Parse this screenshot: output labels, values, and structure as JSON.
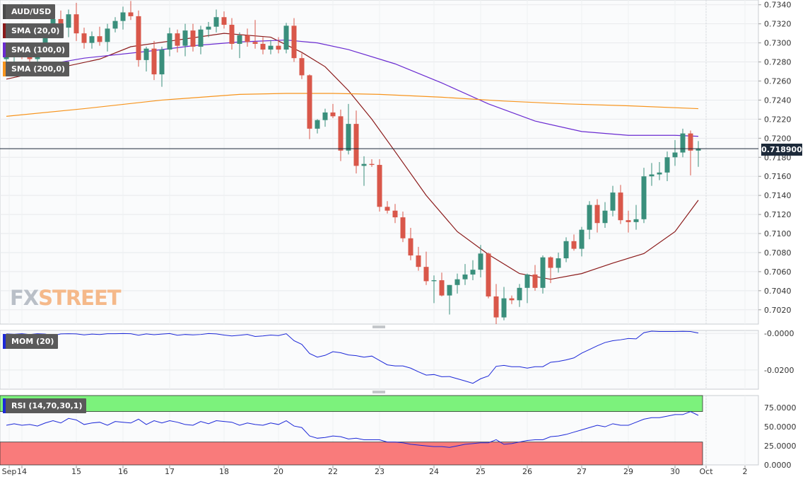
{
  "symbol": "AUD/USD",
  "indicators": {
    "sma20": {
      "label": "SMA (20,0)",
      "color": "#8b1a1a"
    },
    "sma100": {
      "label": "SMA (100,0)",
      "color": "#6a2bd1"
    },
    "sma200": {
      "label": "SMA (200,0)",
      "color": "#f7941d"
    },
    "mom": {
      "label": "MOM (20)",
      "color": "#1c28d8"
    },
    "rsi": {
      "label": "RSI (14,70,30,1)",
      "color": "#1c28d8"
    }
  },
  "logo": {
    "part1": "FX",
    "part2": "STREET"
  },
  "current_price": {
    "value": 0.7189,
    "label": "0.718900",
    "color": "#1d2a3a"
  },
  "colors": {
    "bull": "#3a8f7c",
    "bear": "#d9574a",
    "rsi_overbought": "#7cf27c",
    "rsi_oversold": "#f97b7b"
  },
  "chart_data": [
    {
      "type": "candlestick",
      "title": "AUD/USD",
      "xlabel": "",
      "ylabel": "",
      "x_tick_labels": [
        "Sep",
        "14",
        "15",
        "16",
        "17",
        "18",
        "20",
        "22",
        "23",
        "24",
        "25",
        "26",
        "27",
        "29",
        "30",
        "Oct",
        "2"
      ],
      "y_ticks": [
        0.702,
        0.704,
        0.706,
        0.708,
        0.71,
        0.712,
        0.714,
        0.716,
        0.718,
        0.72,
        0.722,
        0.724,
        0.726,
        0.728,
        0.73,
        0.732,
        0.734
      ],
      "y_tick_labels": [
        "0.7020",
        "0.7040",
        "0.7060",
        "0.7080",
        "0.7100",
        "0.7120",
        "0.7140",
        "0.7160",
        "0.7180",
        "0.7200",
        "0.7220",
        "0.7240",
        "0.7260",
        "0.7280",
        "0.7300",
        "0.7320",
        "0.7340"
      ],
      "ylim": [
        0.7005,
        0.7345
      ],
      "grid": true,
      "candles": [
        [
          0.7283,
          0.7291,
          0.7276,
          0.7286
        ],
        [
          0.7286,
          0.7294,
          0.728,
          0.729
        ],
        [
          0.729,
          0.7296,
          0.7283,
          0.7288
        ],
        [
          0.7288,
          0.7295,
          0.728,
          0.7283
        ],
        [
          0.7283,
          0.73,
          0.7273,
          0.7296
        ],
        [
          0.7296,
          0.7315,
          0.7291,
          0.731
        ],
        [
          0.731,
          0.733,
          0.7306,
          0.7325
        ],
        [
          0.7325,
          0.7334,
          0.7312,
          0.7316
        ],
        [
          0.7316,
          0.7335,
          0.7306,
          0.733
        ],
        [
          0.733,
          0.7342,
          0.7302,
          0.731
        ],
        [
          0.731,
          0.7316,
          0.7294,
          0.73
        ],
        [
          0.73,
          0.7312,
          0.7294,
          0.7307
        ],
        [
          0.7307,
          0.7317,
          0.7297,
          0.7301
        ],
        [
          0.7301,
          0.732,
          0.7291,
          0.7315
        ],
        [
          0.7315,
          0.7327,
          0.7311,
          0.7323
        ],
        [
          0.7323,
          0.7338,
          0.7314,
          0.7332
        ],
        [
          0.7332,
          0.7344,
          0.7324,
          0.7328
        ],
        [
          0.7328,
          0.7334,
          0.7275,
          0.7282
        ],
        [
          0.7282,
          0.7296,
          0.727,
          0.7294
        ],
        [
          0.7294,
          0.7302,
          0.7261,
          0.7267
        ],
        [
          0.7267,
          0.7296,
          0.7254,
          0.7293
        ],
        [
          0.7293,
          0.7316,
          0.7286,
          0.731
        ],
        [
          0.731,
          0.7314,
          0.729,
          0.7297
        ],
        [
          0.7297,
          0.732,
          0.7286,
          0.7313
        ],
        [
          0.7313,
          0.732,
          0.7291,
          0.7296
        ],
        [
          0.7296,
          0.7318,
          0.7288,
          0.7314
        ],
        [
          0.7314,
          0.7322,
          0.7306,
          0.7317
        ],
        [
          0.7317,
          0.7335,
          0.7311,
          0.7327
        ],
        [
          0.7327,
          0.7333,
          0.7315,
          0.7319
        ],
        [
          0.7319,
          0.7326,
          0.7293,
          0.7299
        ],
        [
          0.7299,
          0.7311,
          0.7284,
          0.7308
        ],
        [
          0.7308,
          0.7315,
          0.7296,
          0.7301
        ],
        [
          0.7301,
          0.7324,
          0.7294,
          0.7299
        ],
        [
          0.7299,
          0.7306,
          0.7288,
          0.7293
        ],
        [
          0.7293,
          0.7303,
          0.7288,
          0.7297
        ],
        [
          0.7297,
          0.7306,
          0.7289,
          0.7293
        ],
        [
          0.7293,
          0.7321,
          0.7289,
          0.7318
        ],
        [
          0.7318,
          0.7326,
          0.728,
          0.7284
        ],
        [
          0.7284,
          0.7289,
          0.7262,
          0.7266
        ],
        [
          0.7266,
          0.7267,
          0.7199,
          0.721
        ],
        [
          0.721,
          0.722,
          0.7205,
          0.7219
        ],
        [
          0.7219,
          0.7231,
          0.7212,
          0.7227
        ],
        [
          0.7227,
          0.7236,
          0.7221,
          0.7223
        ],
        [
          0.7223,
          0.723,
          0.7176,
          0.7187
        ],
        [
          0.7187,
          0.7236,
          0.7183,
          0.7215
        ],
        [
          0.7215,
          0.7229,
          0.7163,
          0.7171
        ],
        [
          0.7171,
          0.7181,
          0.715,
          0.7173
        ],
        [
          0.7173,
          0.7178,
          0.717,
          0.7172
        ],
        [
          0.7172,
          0.7178,
          0.7123,
          0.7128
        ],
        [
          0.7128,
          0.7134,
          0.7121,
          0.7124
        ],
        [
          0.7124,
          0.7131,
          0.7111,
          0.7117
        ],
        [
          0.7117,
          0.7123,
          0.7091,
          0.7095
        ],
        [
          0.7095,
          0.7106,
          0.7072,
          0.7077
        ],
        [
          0.7077,
          0.7086,
          0.7061,
          0.7065
        ],
        [
          0.7065,
          0.7081,
          0.7046,
          0.705
        ],
        [
          0.705,
          0.7056,
          0.7027,
          0.7051
        ],
        [
          0.7051,
          0.7059,
          0.7034,
          0.7035
        ],
        [
          0.7035,
          0.7046,
          0.7015,
          0.7046
        ],
        [
          0.7046,
          0.7058,
          0.7037,
          0.7052
        ],
        [
          0.7052,
          0.7068,
          0.7046,
          0.7057
        ],
        [
          0.7057,
          0.7072,
          0.7051,
          0.7062
        ],
        [
          0.7062,
          0.7088,
          0.7054,
          0.7079
        ],
        [
          0.7079,
          0.708,
          0.7032,
          0.7034
        ],
        [
          0.7034,
          0.7047,
          0.7005,
          0.7012
        ],
        [
          0.7012,
          0.7044,
          0.7009,
          0.7032
        ],
        [
          0.7032,
          0.7035,
          0.7026,
          0.703
        ],
        [
          0.703,
          0.7047,
          0.7023,
          0.7043
        ],
        [
          0.7043,
          0.7058,
          0.7027,
          0.7057
        ],
        [
          0.7057,
          0.7067,
          0.704,
          0.7043
        ],
        [
          0.7043,
          0.7077,
          0.7037,
          0.7075
        ],
        [
          0.7075,
          0.7076,
          0.7048,
          0.7064
        ],
        [
          0.7064,
          0.708,
          0.7059,
          0.7074
        ],
        [
          0.7074,
          0.7096,
          0.707,
          0.7092
        ],
        [
          0.7092,
          0.7099,
          0.7082,
          0.7084
        ],
        [
          0.7084,
          0.7107,
          0.7076,
          0.7104
        ],
        [
          0.7104,
          0.7134,
          0.7094,
          0.713
        ],
        [
          0.713,
          0.7136,
          0.7101,
          0.7111
        ],
        [
          0.7111,
          0.7133,
          0.7106,
          0.7124
        ],
        [
          0.7124,
          0.715,
          0.7118,
          0.7143
        ],
        [
          0.7143,
          0.7151,
          0.711,
          0.7114
        ],
        [
          0.7114,
          0.7124,
          0.7101,
          0.7112
        ],
        [
          0.7112,
          0.713,
          0.7104,
          0.7115
        ],
        [
          0.7115,
          0.7169,
          0.7111,
          0.716
        ],
        [
          0.716,
          0.7174,
          0.715,
          0.7162
        ],
        [
          0.7162,
          0.7175,
          0.7156,
          0.7164
        ],
        [
          0.7164,
          0.7186,
          0.7155,
          0.718
        ],
        [
          0.718,
          0.7198,
          0.7171,
          0.7185
        ],
        [
          0.7185,
          0.721,
          0.718,
          0.7205
        ],
        [
          0.7205,
          0.7208,
          0.7161,
          0.7187
        ],
        [
          0.7187,
          0.7197,
          0.717,
          0.7189
        ]
      ],
      "series": [
        {
          "name": "SMA (20,0)",
          "color": "#8b1a1a",
          "x": [
            0,
            12,
            16,
            22,
            28,
            34,
            38,
            41,
            44,
            47,
            50,
            54,
            58,
            62,
            66,
            70,
            74,
            78,
            82,
            86,
            89
          ],
          "values": [
            0.7262,
            0.7283,
            0.7296,
            0.7303,
            0.731,
            0.7306,
            0.729,
            0.7275,
            0.725,
            0.722,
            0.7186,
            0.714,
            0.7102,
            0.7078,
            0.7058,
            0.7052,
            0.7058,
            0.7069,
            0.7079,
            0.7102,
            0.7135
          ]
        },
        {
          "name": "SMA (100,0)",
          "color": "#6a2bd1",
          "x": [
            0,
            10,
            18,
            24,
            30,
            36,
            40,
            44,
            50,
            56,
            62,
            68,
            74,
            80,
            86,
            89
          ],
          "values": [
            0.727,
            0.7284,
            0.7291,
            0.7297,
            0.7301,
            0.7303,
            0.73,
            0.7293,
            0.7278,
            0.7258,
            0.7236,
            0.7218,
            0.7207,
            0.7203,
            0.7203,
            0.7202
          ]
        },
        {
          "name": "SMA (200,0)",
          "color": "#f7941d",
          "x": [
            0,
            10,
            20,
            30,
            36,
            42,
            48,
            56,
            64,
            72,
            80,
            89
          ],
          "values": [
            0.7223,
            0.7231,
            0.724,
            0.7246,
            0.7247,
            0.7247,
            0.7246,
            0.7243,
            0.7239,
            0.7236,
            0.7234,
            0.7231
          ]
        }
      ]
    },
    {
      "type": "line",
      "title": "MOM (20)",
      "ylim": [
        -0.0305,
        0.0016
      ],
      "y_ticks": [
        0.0,
        -0.02
      ],
      "y_tick_labels": [
        "-0.0000",
        "-0.0200"
      ],
      "series": [
        {
          "name": "MOM (20)",
          "values": [
            -0.0003,
            -0.0005,
            -0.0002,
            -0.0006,
            -0.0002,
            -0.0004,
            -0.0012,
            -0.0003,
            -0.0002,
            -0.0003,
            -0.0008,
            -0.0004,
            -0.0006,
            -0.0002,
            -0.0002,
            -0.0001,
            -0.0002,
            -0.001,
            -0.0003,
            -0.0007,
            -0.0004,
            -0.0001,
            -0.001,
            -0.0006,
            -0.0008,
            -0.0006,
            -0.0001,
            -0.0003,
            -0.0009,
            -0.0014,
            -0.001,
            -0.0006,
            -0.0017,
            -0.0014,
            -0.0009,
            -0.0012,
            -0.0002,
            -0.004,
            -0.006,
            -0.011,
            -0.013,
            -0.012,
            -0.01,
            -0.0106,
            -0.0118,
            -0.0122,
            -0.013,
            -0.0124,
            -0.0148,
            -0.0172,
            -0.0178,
            -0.0178,
            -0.019,
            -0.021,
            -0.0228,
            -0.0225,
            -0.0237,
            -0.0236,
            -0.0248,
            -0.026,
            -0.0273,
            -0.0248,
            -0.0233,
            -0.018,
            -0.0175,
            -0.0182,
            -0.0182,
            -0.019,
            -0.0182,
            -0.0182,
            -0.0158,
            -0.0153,
            -0.0145,
            -0.0134,
            -0.0108,
            -0.0088,
            -0.0068,
            -0.005,
            -0.004,
            -0.0035,
            -0.0028,
            -0.003,
            0.0004,
            0.0012,
            0.001,
            0.001,
            0.001,
            0.0011,
            0.001,
            0.0002
          ]
        }
      ]
    },
    {
      "type": "line",
      "title": "RSI (14,70,30,1)",
      "ylim": [
        0,
        91
      ],
      "y_ticks": [
        0,
        25,
        50,
        75
      ],
      "y_tick_labels": [
        "0.0000",
        "25.0000",
        "50.0000",
        "75.0000"
      ],
      "overbought": 70,
      "oversold": 30,
      "series": [
        {
          "name": "RSI (14,70,30,1)",
          "values": [
            52,
            54,
            52,
            53,
            51,
            55,
            58,
            55,
            61,
            59,
            53,
            55,
            56,
            52,
            57,
            56,
            55,
            60,
            53,
            58,
            55,
            58,
            56,
            53,
            52,
            57,
            54,
            58,
            57,
            56,
            52,
            55,
            53,
            52,
            55,
            53,
            58,
            51,
            49,
            38,
            35,
            36,
            38,
            37,
            34,
            35,
            33,
            33,
            33,
            30,
            30,
            29,
            27,
            26,
            25,
            24,
            24,
            23,
            25,
            27,
            28,
            29,
            29,
            33,
            27,
            28,
            30,
            32,
            33,
            33,
            37,
            38,
            40,
            43,
            46,
            49,
            52,
            50,
            54,
            52,
            52,
            56,
            60,
            62,
            62,
            64,
            66,
            66,
            70,
            65
          ]
        }
      ]
    }
  ]
}
